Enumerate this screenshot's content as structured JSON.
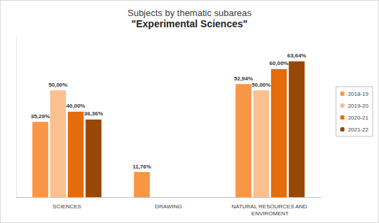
{
  "chart_data": {
    "type": "bar",
    "title": "Subjects by thematic subareas",
    "subtitle": "\"Experimental Sciences\"",
    "categories": [
      "SCIENCES",
      "DRAWING",
      "NATURAL RESOURCES AND ENVIROMENT"
    ],
    "series": [
      {
        "name": "2018-19",
        "color": "#f79646",
        "values": [
          35.29,
          11.76,
          52.94
        ],
        "value_labels": [
          "35,29%",
          "11,76%",
          "52,94%"
        ]
      },
      {
        "name": "2019-20",
        "color": "#fac090",
        "values": [
          50.0,
          null,
          50.0
        ],
        "value_labels": [
          "50,00%",
          null,
          "50,00%"
        ]
      },
      {
        "name": "2020-21",
        "color": "#e46c0a",
        "values": [
          40.0,
          null,
          60.0
        ],
        "value_labels": [
          "40,00%",
          null,
          "60,00%"
        ]
      },
      {
        "name": "2021-22",
        "color": "#974706",
        "values": [
          36.36,
          null,
          63.64
        ],
        "value_labels": [
          "36,36%",
          null,
          "63,64%"
        ]
      }
    ],
    "ylim": [
      0,
      75
    ],
    "yticks": [
      0,
      75
    ],
    "grid": false,
    "legend": "right",
    "data_labels": true,
    "tick_labels": "x"
  }
}
